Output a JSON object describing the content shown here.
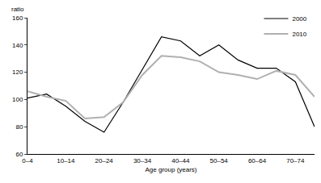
{
  "chart_data": {
    "type": "line",
    "x_label": "Age group (years)",
    "y_label": "ratio",
    "categories": [
      "0–4",
      null,
      "10–14",
      null,
      "20–24",
      null,
      "30–34",
      null,
      "40–44",
      null,
      "50–54",
      null,
      "60–64",
      null,
      "70–74",
      null
    ],
    "series": [
      {
        "name": "2000",
        "color": "#000000",
        "values": [
          101,
          104,
          95,
          84,
          76,
          98,
          122,
          146,
          143,
          132,
          140,
          129,
          123,
          123,
          113,
          80
        ]
      },
      {
        "name": "2010",
        "color": "#b0b0b0",
        "values": [
          106,
          102,
          99,
          86,
          87,
          98,
          118,
          132,
          131,
          128,
          120,
          118,
          115,
          121,
          118,
          102
        ]
      }
    ],
    "ylim": [
      60,
      160
    ],
    "yticks": [
      60,
      80,
      100,
      120,
      140,
      160
    ],
    "grid": false,
    "legend": "top right"
  }
}
